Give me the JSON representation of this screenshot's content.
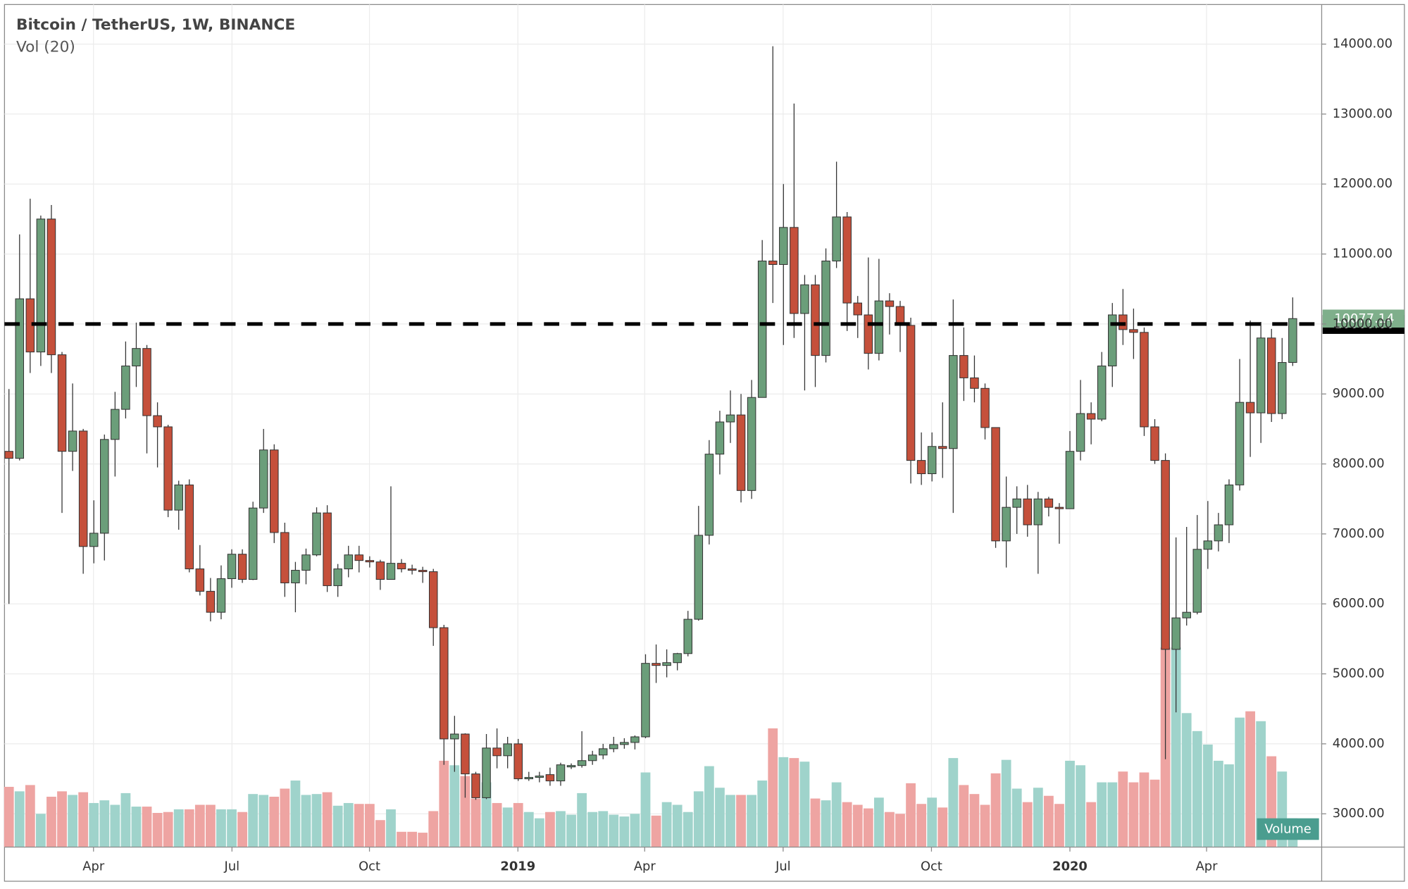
{
  "chart_data": {
    "type": "candlestick",
    "title": "Bitcoin / TetherUS, 1W, BINANCE",
    "subtitle": "Vol (20)",
    "colors": {
      "up": "#6b9e7a",
      "down": "#c5503b",
      "wick": "#333333"
    },
    "candles": [
      [
        8180,
        9070,
        6000,
        8080
      ],
      [
        8080,
        11280,
        8050,
        10360
      ],
      [
        10360,
        11790,
        9300,
        9600
      ],
      [
        9600,
        11550,
        9400,
        11500
      ],
      [
        11500,
        11700,
        9300,
        9560
      ],
      [
        9560,
        9600,
        7300,
        8180
      ],
      [
        8180,
        9150,
        7900,
        8470
      ],
      [
        8470,
        8500,
        6430,
        6820
      ],
      [
        6820,
        7480,
        6580,
        7010
      ],
      [
        7010,
        8420,
        6620,
        8350
      ],
      [
        8350,
        9030,
        7820,
        8780
      ],
      [
        8780,
        9750,
        8650,
        9400
      ],
      [
        9400,
        10020,
        9100,
        9650
      ],
      [
        9650,
        9700,
        8150,
        8690
      ],
      [
        8690,
        8880,
        7950,
        8530
      ],
      [
        8530,
        8560,
        7240,
        7340
      ],
      [
        7340,
        7760,
        7060,
        7700
      ],
      [
        7700,
        7780,
        6450,
        6500
      ],
      [
        6500,
        6840,
        6120,
        6180
      ],
      [
        6180,
        6370,
        5750,
        5880
      ],
      [
        5880,
        6550,
        5780,
        6360
      ],
      [
        6360,
        6780,
        6230,
        6710
      ],
      [
        6710,
        6780,
        6300,
        6350
      ],
      [
        6350,
        7460,
        6340,
        7370
      ],
      [
        7370,
        8500,
        7300,
        8200
      ],
      [
        8200,
        8280,
        6870,
        7020
      ],
      [
        7020,
        7160,
        6100,
        6300
      ],
      [
        6300,
        6600,
        5880,
        6480
      ],
      [
        6480,
        6790,
        6280,
        6700
      ],
      [
        6700,
        7380,
        6680,
        7300
      ],
      [
        7300,
        7410,
        6170,
        6260
      ],
      [
        6260,
        6570,
        6100,
        6500
      ],
      [
        6500,
        6830,
        6380,
        6700
      ],
      [
        6700,
        6830,
        6450,
        6620
      ],
      [
        6620,
        6680,
        6520,
        6600
      ],
      [
        6600,
        6630,
        6200,
        6350
      ],
      [
        6350,
        7680,
        6350,
        6580
      ],
      [
        6580,
        6640,
        6450,
        6500
      ],
      [
        6500,
        6560,
        6420,
        6480
      ],
      [
        6480,
        6530,
        6300,
        6460
      ],
      [
        6460,
        6500,
        5400,
        5660
      ],
      [
        5660,
        5700,
        3700,
        4070
      ],
      [
        4070,
        4400,
        3600,
        4140
      ],
      [
        4140,
        4150,
        3230,
        3570
      ],
      [
        3570,
        3600,
        3200,
        3230
      ],
      [
        3230,
        4140,
        3210,
        3940
      ],
      [
        3940,
        4220,
        3650,
        3830
      ],
      [
        3830,
        4100,
        3650,
        4000
      ],
      [
        4000,
        4070,
        3470,
        3500
      ],
      [
        3500,
        3600,
        3470,
        3520
      ],
      [
        3520,
        3600,
        3450,
        3540
      ],
      [
        3560,
        3660,
        3400,
        3470
      ],
      [
        3470,
        3730,
        3400,
        3700
      ],
      [
        3670,
        3720,
        3640,
        3690
      ],
      [
        3690,
        4180,
        3660,
        3760
      ],
      [
        3760,
        3900,
        3700,
        3840
      ],
      [
        3840,
        4000,
        3780,
        3930
      ],
      [
        3930,
        4100,
        3880,
        3990
      ],
      [
        3990,
        4080,
        3930,
        4020
      ],
      [
        4020,
        4120,
        3920,
        4100
      ],
      [
        4100,
        5280,
        4080,
        5150
      ],
      [
        5150,
        5420,
        4870,
        5120
      ],
      [
        5120,
        5350,
        4950,
        5160
      ],
      [
        5160,
        5300,
        5050,
        5290
      ],
      [
        5290,
        5900,
        5250,
        5780
      ],
      [
        5780,
        7400,
        5760,
        6980
      ],
      [
        6980,
        8340,
        6850,
        8140
      ],
      [
        8140,
        8760,
        7850,
        8600
      ],
      [
        8600,
        9050,
        8300,
        8700
      ],
      [
        8700,
        9000,
        7450,
        7620
      ],
      [
        7620,
        9200,
        7500,
        8950
      ],
      [
        8950,
        11200,
        8950,
        10900
      ],
      [
        10900,
        13970,
        10300,
        10850
      ],
      [
        10850,
        12000,
        9700,
        11380
      ],
      [
        11380,
        13150,
        9800,
        10150
      ],
      [
        10150,
        10700,
        9050,
        10560
      ],
      [
        10560,
        10700,
        9100,
        9550
      ],
      [
        9550,
        11080,
        9450,
        10900
      ],
      [
        10900,
        12320,
        10800,
        11530
      ],
      [
        11530,
        11600,
        9900,
        10300
      ],
      [
        10300,
        10400,
        9800,
        10130
      ],
      [
        10130,
        10950,
        9350,
        9580
      ],
      [
        9580,
        10930,
        9480,
        10330
      ],
      [
        10330,
        10440,
        9850,
        10250
      ],
      [
        10250,
        10330,
        9600,
        9980
      ],
      [
        9980,
        10090,
        7720,
        8050
      ],
      [
        8050,
        8450,
        7700,
        7860
      ],
      [
        7860,
        8450,
        7750,
        8250
      ],
      [
        8250,
        8880,
        7800,
        8220
      ],
      [
        8220,
        10350,
        7300,
        9550
      ],
      [
        9550,
        9950,
        8900,
        9230
      ],
      [
        9230,
        9550,
        8880,
        9080
      ],
      [
        9080,
        9150,
        8350,
        8520
      ],
      [
        8520,
        8520,
        6800,
        6900
      ],
      [
        6900,
        7820,
        6520,
        7380
      ],
      [
        7380,
        7680,
        7000,
        7500
      ],
      [
        7500,
        7700,
        6960,
        7130
      ],
      [
        7130,
        7600,
        6430,
        7500
      ],
      [
        7500,
        7530,
        7250,
        7380
      ],
      [
        7380,
        7440,
        6860,
        7360
      ],
      [
        7360,
        8470,
        7360,
        8180
      ],
      [
        8180,
        9200,
        8050,
        8720
      ],
      [
        8720,
        8880,
        8280,
        8640
      ],
      [
        8640,
        9600,
        8610,
        9400
      ],
      [
        9400,
        10300,
        9100,
        10130
      ],
      [
        10130,
        10500,
        9700,
        9920
      ],
      [
        9920,
        10220,
        9500,
        9880
      ],
      [
        9880,
        9950,
        8400,
        8530
      ],
      [
        8530,
        8640,
        8000,
        8050
      ],
      [
        8050,
        8150,
        3780,
        5350
      ],
      [
        5350,
        6950,
        4450,
        5800
      ],
      [
        5800,
        7100,
        5690,
        5880
      ],
      [
        5880,
        7270,
        5850,
        6780
      ],
      [
        6780,
        7470,
        6500,
        6900
      ],
      [
        6900,
        7300,
        6750,
        7130
      ],
      [
        7130,
        7780,
        6870,
        7700
      ],
      [
        7700,
        9500,
        7620,
        8880
      ],
      [
        8880,
        10050,
        8100,
        8730
      ],
      [
        8730,
        10030,
        8300,
        9800
      ],
      [
        9800,
        9930,
        8600,
        8720
      ],
      [
        8720,
        9800,
        8640,
        9450
      ],
      [
        9450,
        10380,
        9400,
        10077.14
      ]
    ],
    "volume": {
      "name": "Volume",
      "up_color": "#9fd3cb",
      "down_color": "#eea4a2",
      "badge_color": "#4a9d8f",
      "ylim": [
        0,
        240
      ],
      "values": [
        67,
        62,
        69,
        37,
        56,
        62,
        58,
        61,
        49,
        52,
        47,
        60,
        45,
        45,
        38,
        39,
        42,
        42,
        47,
        47,
        42,
        42,
        39,
        59,
        58,
        56,
        65,
        74,
        58,
        59,
        61,
        46,
        49,
        48,
        48,
        30,
        42,
        17,
        17,
        16,
        40,
        96,
        91,
        79,
        54,
        72,
        49,
        44,
        49,
        39,
        32,
        39,
        40,
        36,
        60,
        39,
        40,
        36,
        34,
        37,
        83,
        35,
        50,
        47,
        39,
        62,
        90,
        66,
        58,
        58,
        58,
        74,
        132,
        100,
        99,
        95,
        54,
        52,
        72,
        50,
        47,
        43,
        55,
        39,
        37,
        71,
        48,
        55,
        44,
        99,
        69,
        59,
        47,
        82,
        97,
        65,
        50,
        66,
        57,
        48,
        96,
        91,
        50,
        72,
        72,
        84,
        72,
        83,
        75,
        222,
        222,
        149,
        129,
        114,
        96,
        92,
        144,
        151,
        140,
        101,
        84,
        32
      ]
    },
    "xlim": [
      -0.42,
      123.73
    ],
    "xticks": [
      {
        "value": 7.97,
        "label": "Apr"
      },
      {
        "value": 21.02,
        "label": "Jul"
      },
      {
        "value": 33.98,
        "label": "Oct"
      },
      {
        "value": 47.97,
        "label": "2019"
      },
      {
        "value": 59.92,
        "label": "Apr"
      },
      {
        "value": 72.97,
        "label": "Jul"
      },
      {
        "value": 86.95,
        "label": "Oct"
      },
      {
        "value": 100.0,
        "label": "2020"
      },
      {
        "value": 112.88,
        "label": "Apr"
      }
    ],
    "ylim": [
      2524.4,
      14565.6
    ],
    "yticks": [
      {
        "value": 3000,
        "label": "3000.00"
      },
      {
        "value": 4000,
        "label": "4000.00"
      },
      {
        "value": 5000,
        "label": "5000.00"
      },
      {
        "value": 6000,
        "label": "6000.00"
      },
      {
        "value": 7000,
        "label": "7000.00"
      },
      {
        "value": 8000,
        "label": "8000.00"
      },
      {
        "value": 9000,
        "label": "9000.00"
      },
      {
        "value": 10000,
        "label": "10000.00"
      },
      {
        "value": 11000,
        "label": "11000.00"
      },
      {
        "value": 12000,
        "label": "12000.00"
      },
      {
        "value": 13000,
        "label": "13000.00"
      },
      {
        "value": 14000,
        "label": "14000.00"
      }
    ],
    "grid": true,
    "hline": {
      "value": 10000,
      "label": "10000.00",
      "color": "#000000"
    },
    "last_price": {
      "value": 10077.14,
      "label": "10077.14",
      "color": "#7faf8b"
    }
  }
}
